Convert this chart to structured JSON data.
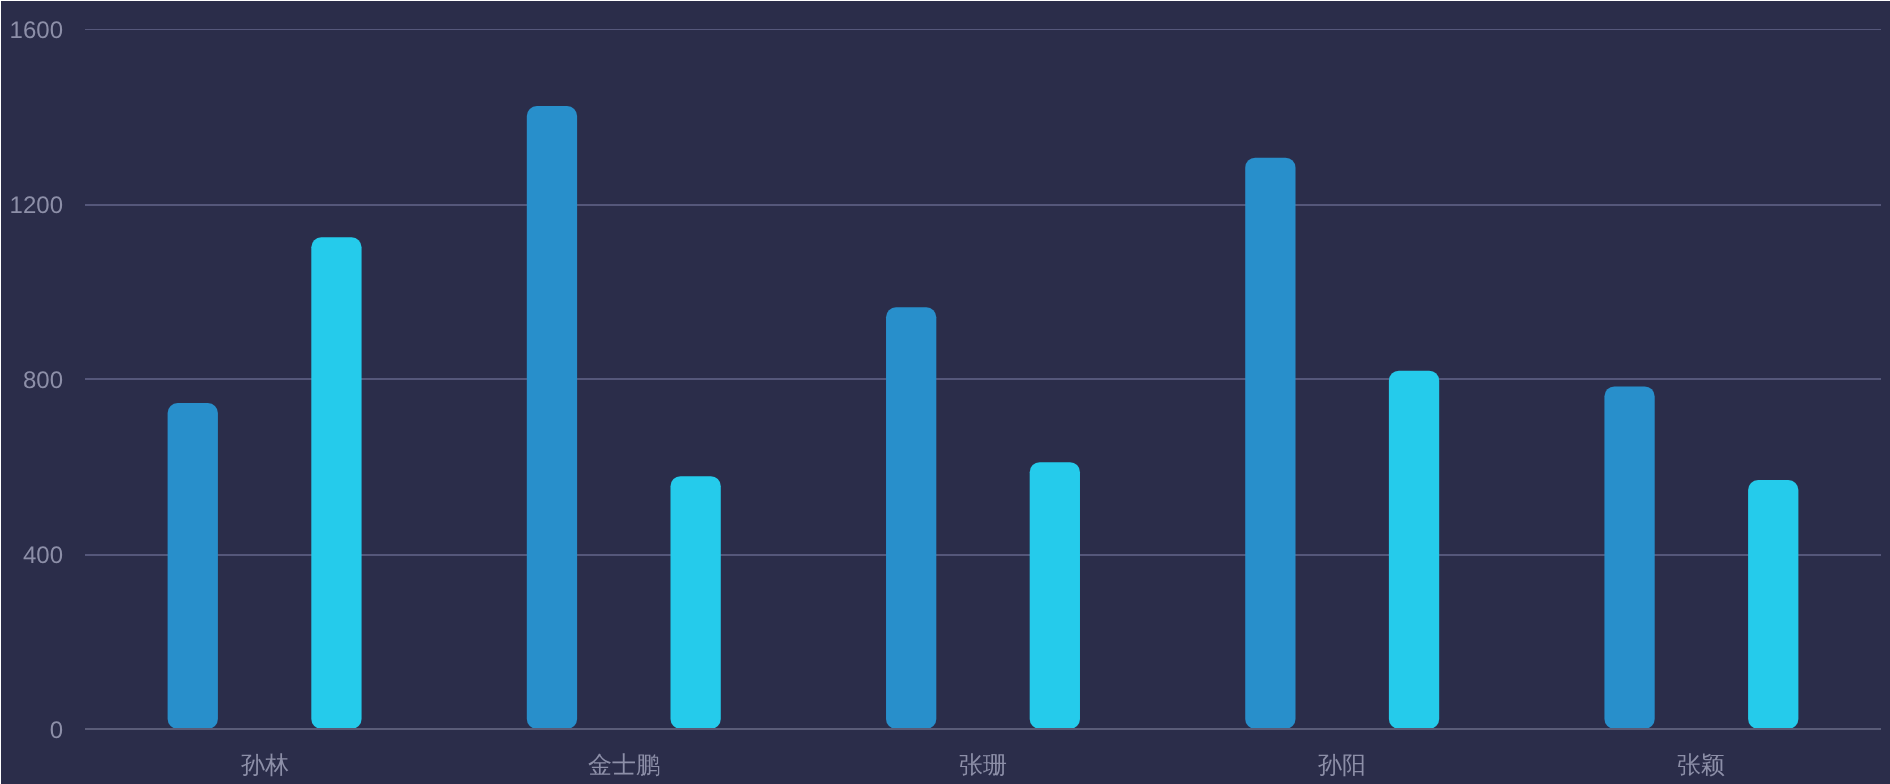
{
  "chart_data": {
    "type": "bar",
    "categories": [
      "孙林",
      "金士鹏",
      "张珊",
      "孙阳",
      "张颖"
    ],
    "series": [
      {
        "color": "#288fcb",
        "values": [
          745,
          1424,
          964,
          1306,
          783
        ]
      },
      {
        "color": "#25cbeb",
        "values": [
          1124,
          578,
          610,
          819,
          569
        ]
      }
    ],
    "ylim": [
      0,
      1600
    ],
    "yticks": [
      0,
      400,
      800,
      1200,
      1600
    ],
    "grid": "y"
  }
}
